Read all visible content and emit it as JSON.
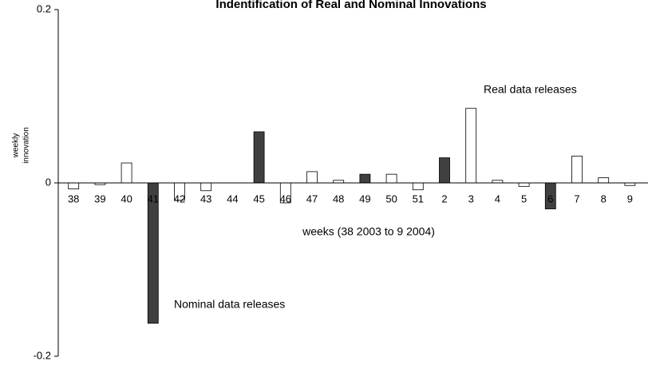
{
  "chart_data": {
    "type": "bar",
    "title": "Indentification of Real and Nominal Innovations",
    "xlabel": "weeks (38 2003 to 9 2004)",
    "ylabel": [
      "weekly",
      "innovation"
    ],
    "categories": [
      "38",
      "39",
      "40",
      "41",
      "42",
      "43",
      "44",
      "45",
      "46",
      "47",
      "48",
      "49",
      "50",
      "51",
      "2",
      "3",
      "4",
      "5",
      "6",
      "7",
      "8",
      "9"
    ],
    "values": [
      -0.007,
      -0.002,
      0.023,
      -0.162,
      -0.02,
      -0.009,
      0,
      0.059,
      -0.023,
      0.013,
      0.003,
      0.01,
      0.01,
      -0.008,
      0.029,
      0.086,
      0.003,
      -0.004,
      -0.03,
      0.031,
      0.006,
      -0.003
    ],
    "colors": [
      "#ffffff",
      "#ffffff",
      "#ffffff",
      "#404040",
      "#ffffff",
      "#ffffff",
      "#ffffff",
      "#404040",
      "#ffffff",
      "#ffffff",
      "#ffffff",
      "#404040",
      "#ffffff",
      "#ffffff",
      "#404040",
      "#ffffff",
      "#ffffff",
      "#ffffff",
      "#404040",
      "#ffffff",
      "#ffffff",
      "#ffffff"
    ],
    "annotations": [
      "Real data releases",
      "Nominal data releases"
    ],
    "ylim": [
      -0.2,
      0.2
    ],
    "yticks": [
      0.2,
      0,
      -0.2
    ],
    "grid": false
  }
}
